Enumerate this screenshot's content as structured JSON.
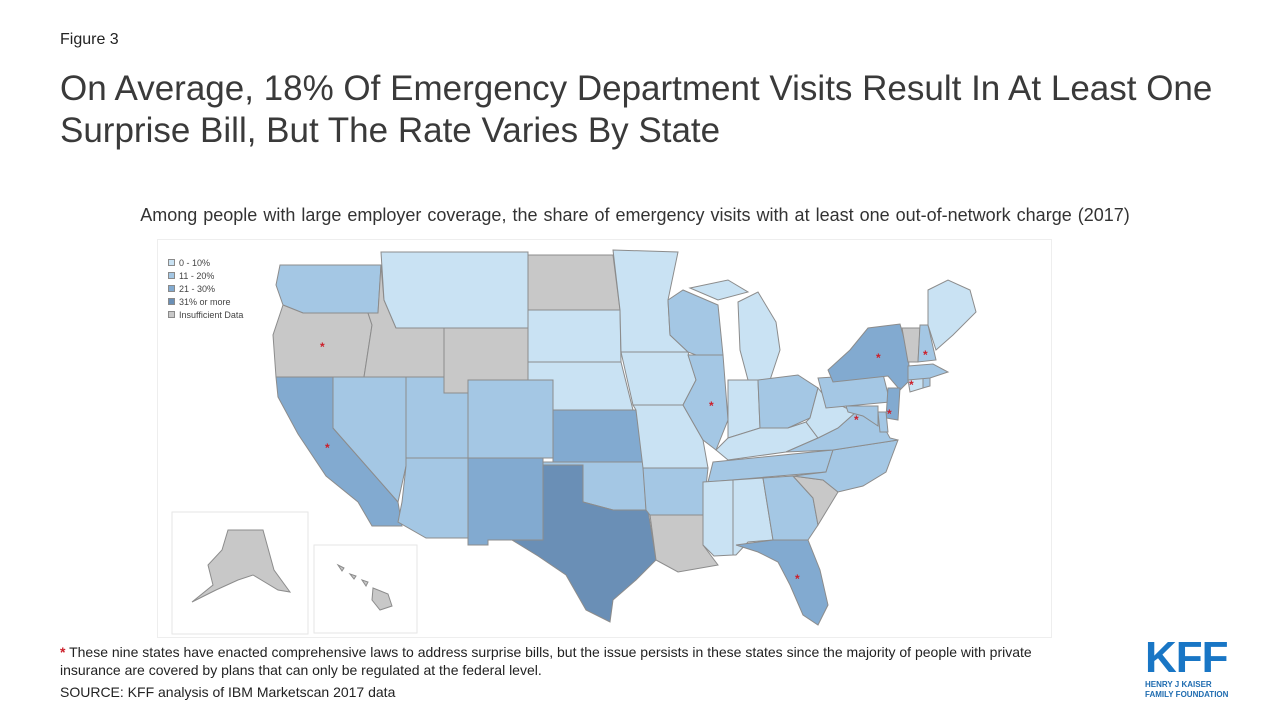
{
  "figure_label": "Figure 3",
  "title": "On Average, 18% Of Emergency Department Visits Result In At Least One Surprise Bill, But The Rate Varies By State",
  "subtitle": "Among people with large employer coverage, the share of emergency visits with at least one out-of-network charge (2017)",
  "colors": {
    "bin_0_10": "#c9e2f3",
    "bin_11_20": "#a4c7e4",
    "bin_21_30": "#82aad0",
    "bin_31_plus": "#6a8fb6",
    "insufficient": "#c8c8c8",
    "asterisk": "#cc1f2a",
    "kff_blue": "#1976c5"
  },
  "legend": [
    {
      "label": "0 - 10%",
      "color_key": "bin_0_10"
    },
    {
      "label": "11 - 20%",
      "color_key": "bin_11_20"
    },
    {
      "label": "21 - 30%",
      "color_key": "bin_21_30"
    },
    {
      "label": "31% or more",
      "color_key": "bin_31_plus"
    },
    {
      "label": "Insufficient Data",
      "color_key": "insufficient"
    }
  ],
  "states": {
    "WA": "bin_11_20",
    "OR": "insufficient",
    "CA": "bin_21_30",
    "ID": "insufficient",
    "NV": "bin_11_20",
    "MT": "bin_0_10",
    "WY": "insufficient",
    "UT": "bin_11_20",
    "AZ": "bin_11_20",
    "CO": "bin_11_20",
    "NM": "bin_21_30",
    "ND": "insufficient",
    "SD": "bin_0_10",
    "NE": "bin_0_10",
    "KS": "bin_21_30",
    "OK": "bin_11_20",
    "TX": "bin_31_plus",
    "MN": "bin_0_10",
    "IA": "bin_0_10",
    "MO": "bin_0_10",
    "AR": "bin_11_20",
    "LA": "insufficient",
    "WI": "bin_11_20",
    "IL": "bin_11_20",
    "MI": "bin_0_10",
    "IN": "bin_0_10",
    "OH": "bin_11_20",
    "KY": "bin_0_10",
    "TN": "bin_11_20",
    "MS": "bin_0_10",
    "AL": "bin_0_10",
    "GA": "bin_11_20",
    "FL": "bin_21_30",
    "SC": "insufficient",
    "NC": "bin_11_20",
    "VA": "bin_11_20",
    "WV": "bin_0_10",
    "PA": "bin_11_20",
    "NY": "bin_21_30",
    "NJ": "bin_21_30",
    "DE": "bin_11_20",
    "MD": "bin_11_20",
    "CT": "bin_0_10",
    "RI": "bin_11_20",
    "MA": "bin_11_20",
    "VT": "insufficient",
    "NH": "bin_11_20",
    "ME": "bin_0_10",
    "AK": "insufficient",
    "HI": "insufficient"
  },
  "asterisk_states": [
    "OR",
    "CA",
    "IL",
    "NY",
    "NJ",
    "MD",
    "CT",
    "NH",
    "FL"
  ],
  "asterisk_symbol": "*",
  "footnote_star": "*",
  "footnote": " These nine states have enacted comprehensive laws to address surprise bills, but the issue persists in these states since the majority of people with private insurance are covered by plans that can only be regulated at the federal level.",
  "source": "SOURCE: KFF analysis of IBM Marketscan 2017 data",
  "logo": {
    "main": "KFF",
    "line1": "HENRY J KAISER",
    "line2": "FAMILY FOUNDATION"
  }
}
